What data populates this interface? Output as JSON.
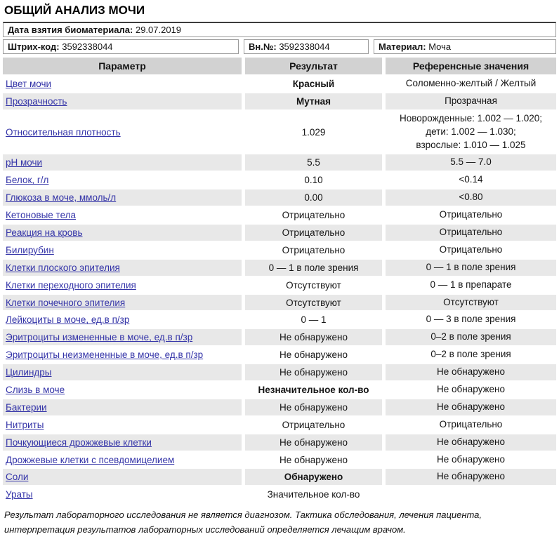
{
  "page": {
    "title": "ОБЩИЙ АНАЛИЗ МОЧИ"
  },
  "colors": {
    "header_bg": "#d2d2d2",
    "zebra_bg": "#e8e8e8",
    "link_blue": "#3434a8",
    "box_border": "#9a9a9a"
  },
  "meta": {
    "date_label": "Дата взятия биоматериала:",
    "date_value": "29.07.2019",
    "barcode_label": "Штрих-код:",
    "barcode_value": "3592338044",
    "internal_label": "Вн.№:",
    "internal_value": "3592338044",
    "material_label": "Материал:",
    "material_value": "Моча"
  },
  "table": {
    "headers": [
      "Параметр",
      "Результат",
      "Референсные значения"
    ],
    "rows": [
      {
        "param": "Цвет мочи",
        "result": "Красный",
        "result_bold": true,
        "ref_lines": [
          "Соломенно-желтый / Желтый"
        ]
      },
      {
        "param": "Прозрачность",
        "result": "Мутная",
        "result_bold": true,
        "ref_lines": [
          "Прозрачная"
        ]
      },
      {
        "param": "Относительная плотность",
        "result": "1.029",
        "result_bold": false,
        "ref_lines": [
          "Новорожденные: 1.002 — 1.020;",
          "дети: 1.002 — 1.030;",
          "взрослые: 1.010 — 1.025"
        ]
      },
      {
        "param": "pH мочи",
        "result": "5.5",
        "result_bold": false,
        "ref_lines": [
          "5.5 — 7.0"
        ]
      },
      {
        "param": "Белок, г/л",
        "result": "0.10",
        "result_bold": false,
        "ref_lines": [
          "<0.14"
        ]
      },
      {
        "param": "Глюкоза в моче, ммоль/л",
        "result": "0.00",
        "result_bold": false,
        "ref_lines": [
          "<0.80"
        ]
      },
      {
        "param": "Кетоновые тела",
        "result": "Отрицательно",
        "result_bold": false,
        "ref_lines": [
          "Отрицательно"
        ]
      },
      {
        "param": "Реакция на кровь",
        "result": "Отрицательно",
        "result_bold": false,
        "ref_lines": [
          "Отрицательно"
        ]
      },
      {
        "param": "Билирубин",
        "result": "Отрицательно",
        "result_bold": false,
        "ref_lines": [
          "Отрицательно"
        ]
      },
      {
        "param": "Клетки плоского эпителия",
        "result": "0 — 1 в поле зрения",
        "result_bold": false,
        "ref_lines": [
          "0 — 1 в поле зрения"
        ]
      },
      {
        "param": "Клетки переходного эпителия",
        "result": "Отсутствуют",
        "result_bold": false,
        "ref_lines": [
          "0 — 1 в препарате"
        ]
      },
      {
        "param": "Клетки почечного эпителия",
        "result": "Отсутствуют",
        "result_bold": false,
        "ref_lines": [
          "Отсутствуют"
        ]
      },
      {
        "param": "Лейкоциты в моче, ед.в п/зр",
        "result": "0 — 1",
        "result_bold": false,
        "ref_lines": [
          "0 — 3 в поле зрения"
        ]
      },
      {
        "param": "Эритроциты измененные в моче, ед.в п/зр",
        "result": "Не обнаружено",
        "result_bold": false,
        "ref_lines": [
          "0–2 в поле зрения"
        ]
      },
      {
        "param": "Эритроциты неизмененные в моче, ед.в п/зр",
        "result": "Не обнаружено",
        "result_bold": false,
        "ref_lines": [
          "0–2 в поле зрения"
        ]
      },
      {
        "param": "Цилиндры",
        "result": "Не обнаружено",
        "result_bold": false,
        "ref_lines": [
          "Не обнаружено"
        ]
      },
      {
        "param": "Слизь в моче",
        "result": "Незначительное кол-во",
        "result_bold": true,
        "ref_lines": [
          "Не обнаружено"
        ]
      },
      {
        "param": "Бактерии",
        "result": "Не обнаружено",
        "result_bold": false,
        "ref_lines": [
          "Не обнаружено"
        ]
      },
      {
        "param": "Нитриты",
        "result": "Отрицательно",
        "result_bold": false,
        "ref_lines": [
          "Отрицательно"
        ]
      },
      {
        "param": "Почкующиеся дрожжевые клетки",
        "result": "Не обнаружено",
        "result_bold": false,
        "ref_lines": [
          "Не обнаружено"
        ]
      },
      {
        "param": "Дрожжевые клетки с псевдомицелием",
        "result": "Не обнаружено",
        "result_bold": false,
        "ref_lines": [
          "Не обнаружено"
        ]
      },
      {
        "param": "Соли",
        "result": "Обнаружено",
        "result_bold": true,
        "ref_lines": [
          "Не обнаружено"
        ]
      },
      {
        "param": "Ураты",
        "result": "Значительное кол-во",
        "result_bold": false,
        "ref_lines": []
      }
    ]
  },
  "footer": {
    "text": "Результат лабораторного исследования не является диагнозом. Тактика обследования, лечения пациента, интерпретация результатов лабораторных исследований определяется лечащим врачом."
  }
}
